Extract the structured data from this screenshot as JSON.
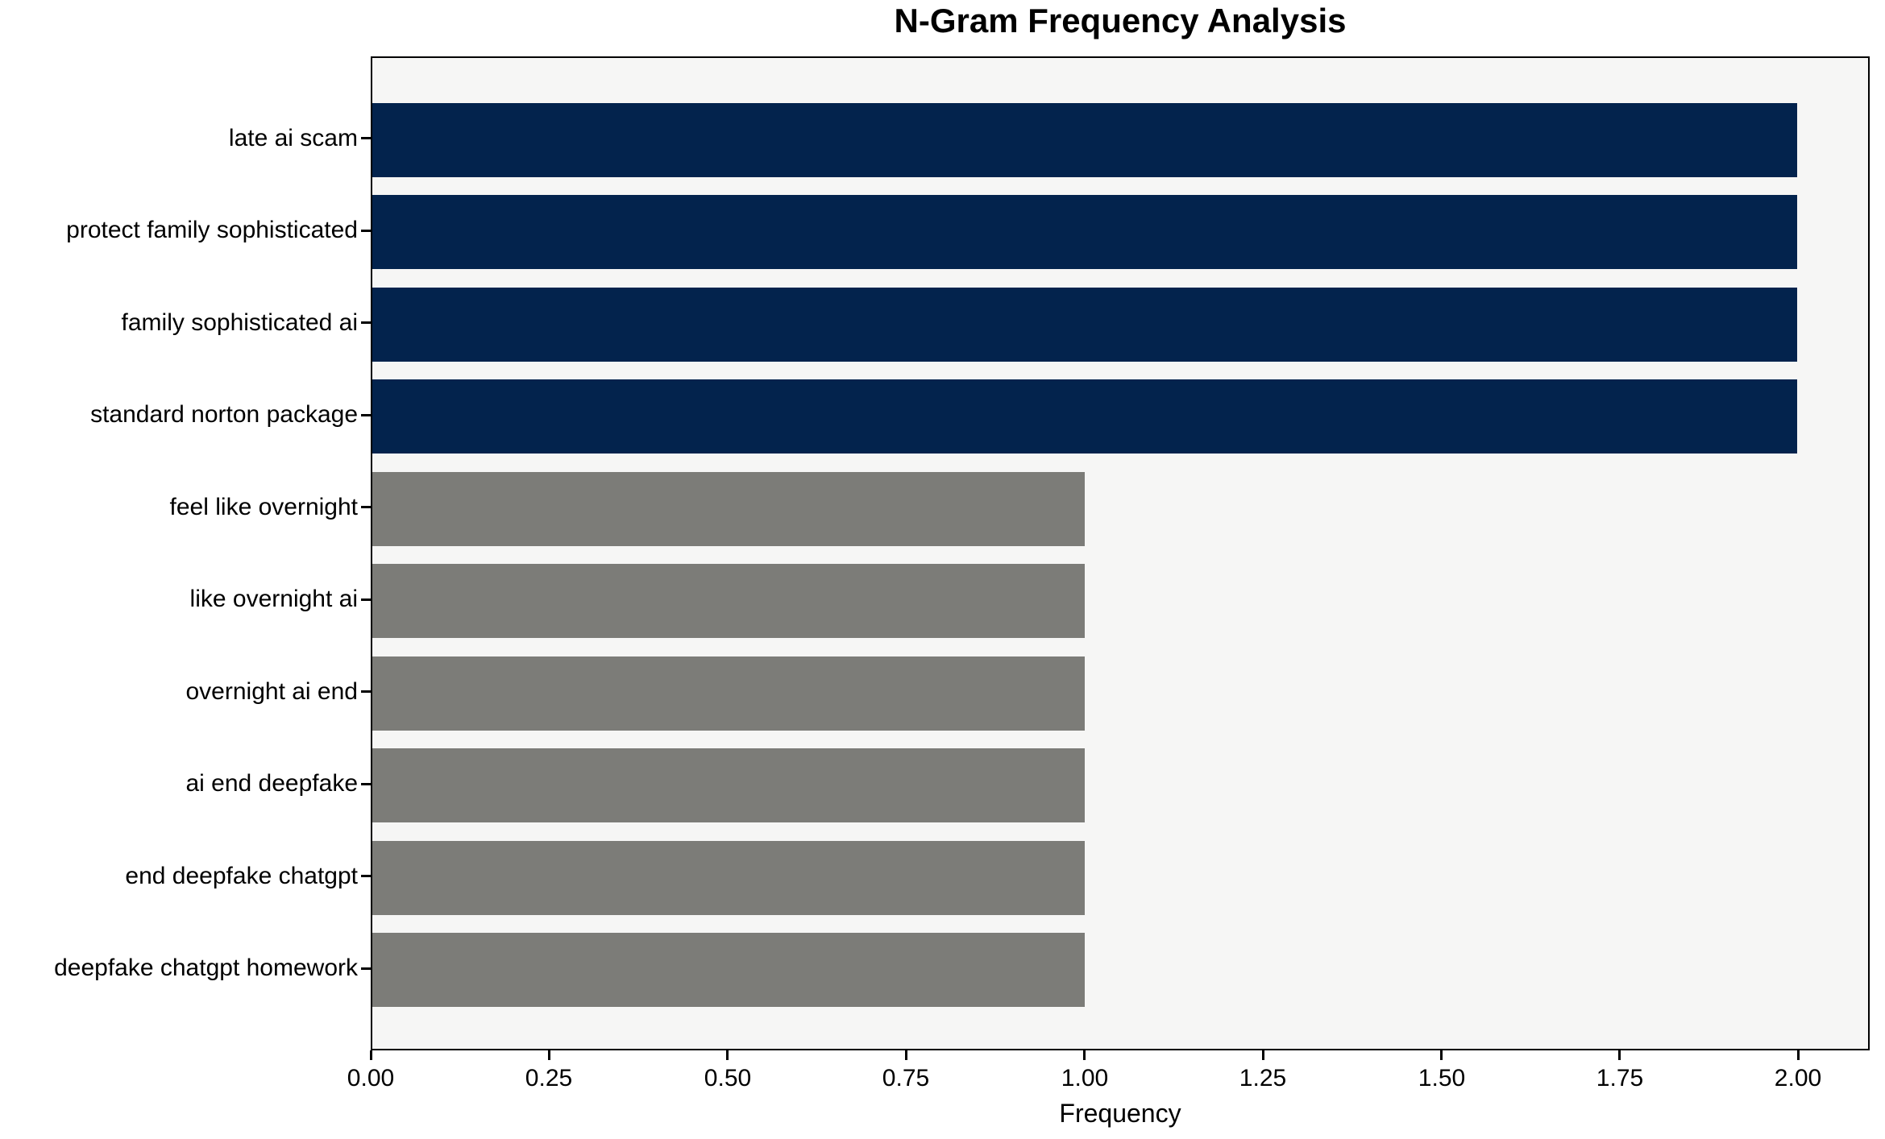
{
  "chart_data": {
    "type": "bar",
    "orientation": "horizontal",
    "title": "N-Gram Frequency Analysis",
    "xlabel": "Frequency",
    "ylabel": "",
    "categories": [
      "late ai scam",
      "protect family sophisticated",
      "family sophisticated ai",
      "standard norton package",
      "feel like overnight",
      "like overnight ai",
      "overnight ai end",
      "ai end deepfake",
      "end deepfake chatgpt",
      "deepfake chatgpt homework"
    ],
    "values": [
      2,
      2,
      2,
      2,
      1,
      1,
      1,
      1,
      1,
      1
    ],
    "bar_colors": [
      "#03234d",
      "#03234d",
      "#03234d",
      "#03234d",
      "#7c7c78",
      "#7c7c78",
      "#7c7c78",
      "#7c7c78",
      "#7c7c78",
      "#7c7c78"
    ],
    "highlight_color": "#03234d",
    "default_color": "#7c7c78",
    "xlim": [
      0,
      2.1
    ],
    "x_tick_values": [
      0,
      0.25,
      0.5,
      0.75,
      1,
      1.25,
      1.5,
      1.75,
      2
    ],
    "x_tick_labels": [
      "0.00",
      "0.25",
      "0.50",
      "0.75",
      "1.00",
      "1.25",
      "1.50",
      "1.75",
      "2.00"
    ],
    "grid": false,
    "legend": null,
    "plot_background": "#f6f6f5",
    "figure_background": "#ffffff",
    "axis_color": "#000000"
  }
}
